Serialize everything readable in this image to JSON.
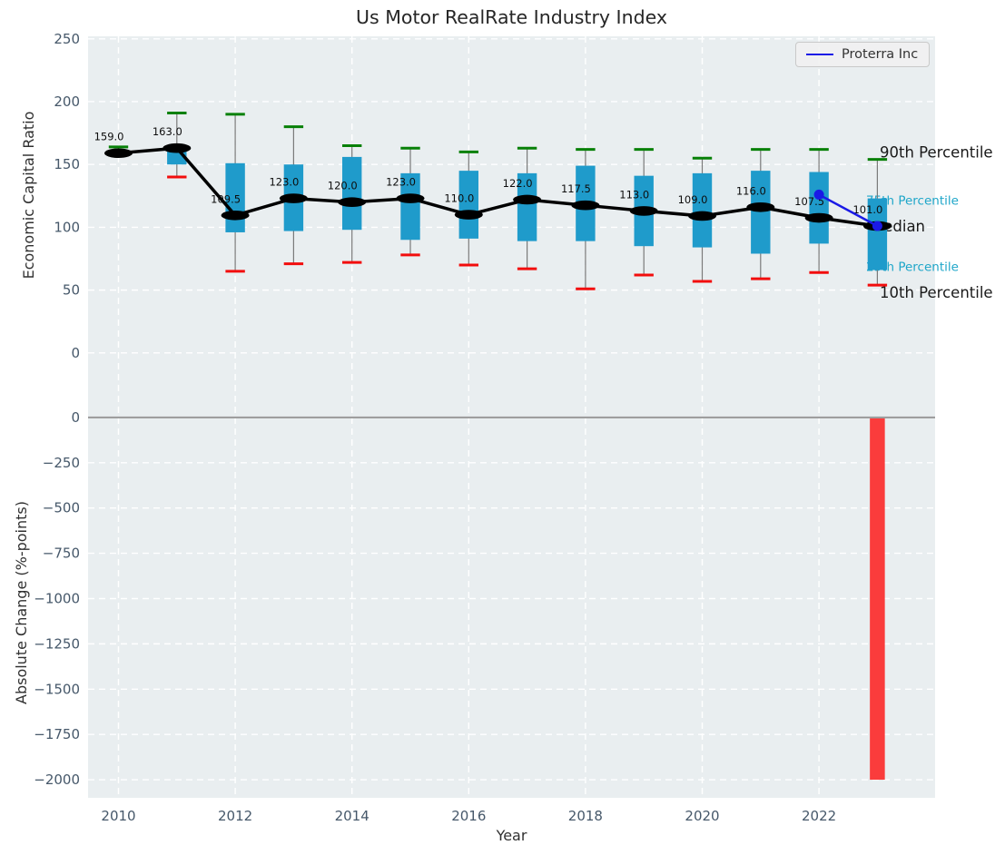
{
  "title": "Us Motor RealRate Industry Index",
  "legend": {
    "label": "Proterra Inc"
  },
  "colors": {
    "plot_bg": "#e9eef0",
    "grid": "#ffffff",
    "tick": "#46586a",
    "box": "#1f9bcb",
    "whisker": "#7a7a7a",
    "p90_cap": "#078007",
    "p10_cap": "#f20d0d",
    "median_line": "#000000",
    "median_label": "#0d0d0d",
    "company_line": "#1a1ae6",
    "bar_negative": "#fa3c3c",
    "zero_line": "#9e9e9e",
    "dark_label": "#1a1a1a",
    "accent_label": "#1ea6c9"
  },
  "chart_data": {
    "type": "boxplot",
    "title": "Us Motor RealRate Industry Index",
    "xlabel": "Year",
    "xticks": [
      2010,
      2012,
      2014,
      2016,
      2018,
      2020,
      2022
    ],
    "xlim": [
      2009.48,
      2023.99
    ],
    "grid": "white dashed on light gray",
    "legend_position": "upper right",
    "panels": [
      {
        "name": "index",
        "ylabel": "Economic Capital Ratio",
        "ylim": [
          -29,
          252
        ],
        "yticks": [
          0,
          50,
          100,
          150,
          200,
          250
        ],
        "ytick_labels": [
          "0",
          "50",
          "100",
          "150",
          "200",
          "250"
        ],
        "series_label": "Proterra Inc",
        "boxes": [
          {
            "year": 2010,
            "p10": 158,
            "q1": 157,
            "median": 159,
            "q3": 161,
            "p90": 164,
            "label": "159.0"
          },
          {
            "year": 2011,
            "p10": 140,
            "q1": 150,
            "median": 163,
            "q3": 163,
            "p90": 191,
            "label": "163.0"
          },
          {
            "year": 2012,
            "p10": 65,
            "q1": 96,
            "median": 109.5,
            "q3": 151,
            "p90": 190,
            "label": "109.5"
          },
          {
            "year": 2013,
            "p10": 71,
            "q1": 97,
            "median": 123,
            "q3": 150,
            "p90": 180,
            "label": "123.0"
          },
          {
            "year": 2014,
            "p10": 72,
            "q1": 98,
            "median": 120,
            "q3": 156,
            "p90": 165,
            "label": "120.0"
          },
          {
            "year": 2015,
            "p10": 78,
            "q1": 90,
            "median": 123,
            "q3": 143,
            "p90": 163,
            "label": "123.0"
          },
          {
            "year": 2016,
            "p10": 70,
            "q1": 91,
            "median": 110,
            "q3": 145,
            "p90": 160,
            "label": "110.0"
          },
          {
            "year": 2017,
            "p10": 67,
            "q1": 89,
            "median": 122,
            "q3": 143,
            "p90": 163,
            "label": "122.0"
          },
          {
            "year": 2018,
            "p10": 51,
            "q1": 89,
            "median": 117.5,
            "q3": 149,
            "p90": 162,
            "label": "117.5"
          },
          {
            "year": 2019,
            "p10": 62,
            "q1": 85,
            "median": 113,
            "q3": 141,
            "p90": 162,
            "label": "113.0"
          },
          {
            "year": 2020,
            "p10": 57,
            "q1": 84,
            "median": 109,
            "q3": 143,
            "p90": 155,
            "label": "109.0"
          },
          {
            "year": 2021,
            "p10": 59,
            "q1": 79,
            "median": 116,
            "q3": 145,
            "p90": 162,
            "label": "116.0"
          },
          {
            "year": 2022,
            "p10": 64,
            "q1": 87,
            "median": 107.5,
            "q3": 144,
            "p90": 162,
            "label": "107.5"
          },
          {
            "year": 2023,
            "p10": 54,
            "q1": 66,
            "median": 101,
            "q3": 123,
            "p90": 154,
            "label": "101.0"
          }
        ],
        "company_series": {
          "name": "Proterra Inc",
          "points": [
            {
              "year": 2022,
              "value": 126
            },
            {
              "year": 2023,
              "value": 101
            }
          ]
        },
        "annotations": [
          {
            "text": "90th Percentile",
            "style": "dark",
            "attach": "p90"
          },
          {
            "text": "75th Percentile",
            "style": "accent",
            "attach": "q3"
          },
          {
            "text": "Median",
            "style": "dark",
            "attach": "median"
          },
          {
            "text": "25th Percentile",
            "style": "accent",
            "attach": "q1"
          },
          {
            "text": "10th Percentile",
            "style": "dark",
            "attach": "p10"
          }
        ]
      },
      {
        "name": "change",
        "ylabel": "Absolute Change (%-points)",
        "ylim": [
          155,
          -2100
        ],
        "yticks": [
          0,
          -250,
          -500,
          -750,
          -1000,
          -1250,
          -1500,
          -1750,
          -2000
        ],
        "ytick_labels": [
          "0",
          "−250",
          "−500",
          "−750",
          "−1000",
          "−1250",
          "−1500",
          "−1750",
          "−2000"
        ],
        "bars": [
          {
            "year": 2023,
            "value": -2000
          }
        ]
      }
    ]
  }
}
